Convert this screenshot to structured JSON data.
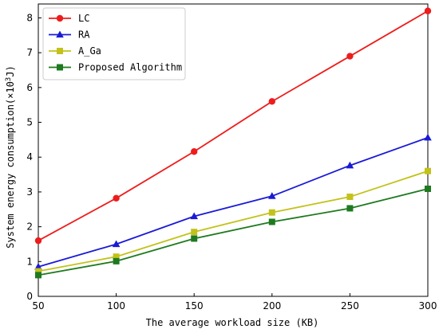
{
  "chart_data": {
    "type": "line",
    "title": "",
    "xlabel": "The average workload size (KB)",
    "ylabel_main": "System energy consumption(×10",
    "ylabel_sup": "3",
    "ylabel_tail": "J)",
    "x": [
      50,
      100,
      150,
      200,
      250,
      300
    ],
    "xlim": [
      50,
      300
    ],
    "ylim": [
      0,
      8.4
    ],
    "xticks": [
      "50",
      "100",
      "150",
      "200",
      "250",
      "300"
    ],
    "yticks": [
      "0",
      "1",
      "2",
      "3",
      "4",
      "5",
      "6",
      "7",
      "8"
    ],
    "grid": false,
    "legend_position": "top-left",
    "series": [
      {
        "name": "LC",
        "color": "#ee1c1c",
        "marker": "circle",
        "values": [
          1.6,
          2.82,
          4.16,
          5.6,
          6.9,
          8.2
        ]
      },
      {
        "name": "RA",
        "color": "#1a1ad6",
        "marker": "triangle",
        "values": [
          0.85,
          1.5,
          2.3,
          2.88,
          3.76,
          4.56
        ]
      },
      {
        "name": "A_Ga",
        "color": "#c2c21a",
        "marker": "square",
        "values": [
          0.72,
          1.14,
          1.85,
          2.41,
          2.86,
          3.6
        ]
      },
      {
        "name": "Proposed Algorithm",
        "color": "#1e7a1e",
        "marker": "square",
        "values": [
          0.61,
          1.01,
          1.66,
          2.14,
          2.53,
          3.09
        ]
      }
    ]
  }
}
